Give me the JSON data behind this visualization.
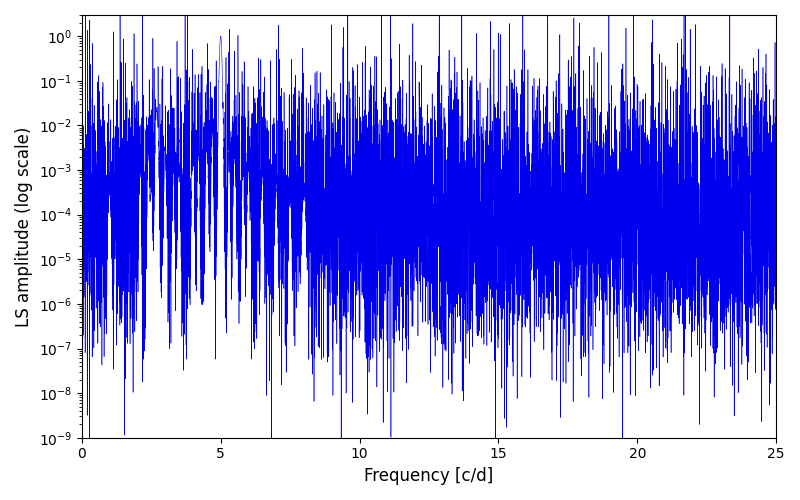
{
  "xlabel": "Frequency [c/d]",
  "ylabel": "LS amplitude (log scale)",
  "line_color": "#0000EE",
  "xlim": [
    0,
    25
  ],
  "ylim": [
    1e-09,
    3.0
  ],
  "freq_min": 0.0,
  "freq_max": 25.0,
  "n_points": 8000,
  "main_spike_freq": 5.0,
  "main_spike_amp": 1.0,
  "secondary_spike_freq": 2.7,
  "secondary_spike_amp": 0.025,
  "background_color": "#ffffff",
  "figsize": [
    8.0,
    5.0
  ],
  "dpi": 100,
  "noise_base": 0.0001,
  "noise_sigma": 3.5
}
